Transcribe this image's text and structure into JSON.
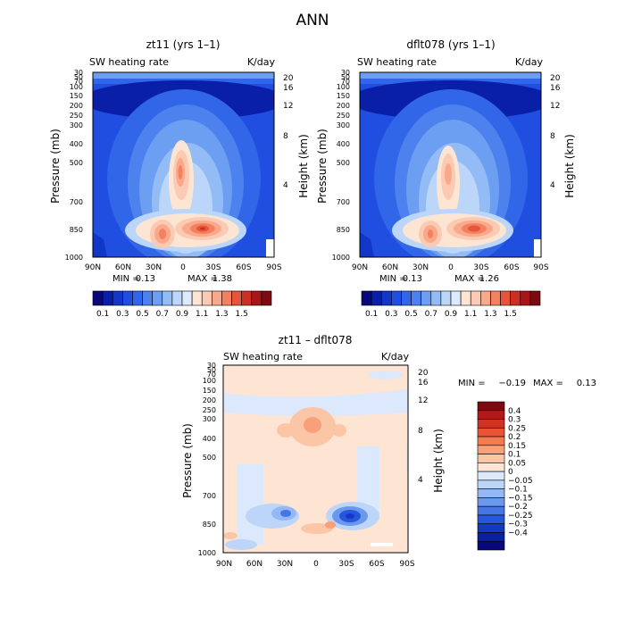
{
  "page_title": "ANN",
  "chart_data": [
    {
      "type": "contour",
      "title": "zt11 (yrs 1–1)",
      "subtitle_left": "SW heating rate",
      "subtitle_right": "K/day",
      "ylabel": "Pressure (mb)",
      "ylabel_right": "Height (km)",
      "x_ticks": [
        "90N",
        "60N",
        "30N",
        "0",
        "30S",
        "60S",
        "90S"
      ],
      "y_ticks": [
        "30",
        "50",
        "70",
        "100",
        "150",
        "200",
        "250",
        "300",
        "400",
        "500",
        "700",
        "850",
        "1000"
      ],
      "y_ticks_right": [
        "20",
        "16",
        "12",
        "8",
        "4"
      ],
      "stats": {
        "min_label": "MIN =",
        "min": "0.13",
        "max_label": "MAX =",
        "max": "1.38"
      },
      "colorbar": {
        "colors": [
          "#08087a",
          "#0a1fa8",
          "#1236c8",
          "#1f4ee0",
          "#3166e8",
          "#4d82ee",
          "#6c9ef2",
          "#93bcf6",
          "#bcd6fa",
          "#dceafd",
          "#fde5d4",
          "#fccab2",
          "#f9a989",
          "#f3805f",
          "#e5553c",
          "#cc2f24",
          "#a8161a",
          "#7d0a10"
        ],
        "labels": [
          "0.1",
          "0.3",
          "0.5",
          "0.7",
          "0.9",
          "1.1",
          "1.3",
          "1.5"
        ]
      }
    },
    {
      "type": "contour",
      "title": "dflt078 (yrs 1–1)",
      "subtitle_left": "SW heating rate",
      "subtitle_right": "K/day",
      "ylabel": "Pressure (mb)",
      "ylabel_right": "Height (km)",
      "x_ticks": [
        "90N",
        "60N",
        "30N",
        "0",
        "30S",
        "60S",
        "90S"
      ],
      "y_ticks": [
        "30",
        "50",
        "70",
        "100",
        "150",
        "200",
        "250",
        "300",
        "400",
        "500",
        "700",
        "850",
        "1000"
      ],
      "y_ticks_right": [
        "20",
        "16",
        "12",
        "8",
        "4"
      ],
      "stats": {
        "min_label": "MIN =",
        "min": "0.13",
        "max_label": "MAX =",
        "max": "1.26"
      },
      "colorbar": {
        "colors": [
          "#08087a",
          "#0a1fa8",
          "#1236c8",
          "#1f4ee0",
          "#3166e8",
          "#4d82ee",
          "#6c9ef2",
          "#93bcf6",
          "#bcd6fa",
          "#dceafd",
          "#fde5d4",
          "#fccab2",
          "#f9a989",
          "#f3805f",
          "#e5553c",
          "#cc2f24",
          "#a8161a",
          "#7d0a10"
        ],
        "labels": [
          "0.1",
          "0.3",
          "0.5",
          "0.7",
          "0.9",
          "1.1",
          "1.3",
          "1.5"
        ]
      }
    },
    {
      "type": "contour",
      "title": "zt11 – dflt078",
      "subtitle_left": "SW heating rate",
      "subtitle_right": "K/day",
      "ylabel": "Pressure (mb)",
      "ylabel_right": "Height (km)",
      "x_ticks": [
        "90N",
        "60N",
        "30N",
        "0",
        "30S",
        "60S",
        "90S"
      ],
      "y_ticks": [
        "30",
        "50",
        "70",
        "100",
        "150",
        "200",
        "250",
        "300",
        "400",
        "500",
        "700",
        "850",
        "1000"
      ],
      "y_ticks_right": [
        "20",
        "16",
        "12",
        "8",
        "4"
      ],
      "stats": {
        "min_label": "MIN =",
        "min": "−0.19",
        "max_label": "MAX =",
        "max": "0.13"
      },
      "colorbar": {
        "colors": [
          "#7d0a10",
          "#b01a18",
          "#d2321f",
          "#ea5333",
          "#f47a50",
          "#f8a07a",
          "#fbc6a6",
          "#fde4d3",
          "#dce9fc",
          "#bdd5f8",
          "#93b8f3",
          "#6a98ee",
          "#4676e6",
          "#2656dc",
          "#1338c4",
          "#0a20a0",
          "#08087a"
        ],
        "labels": [
          "0.4",
          "0.3",
          "0.25",
          "0.2",
          "0.15",
          "0.1",
          "0.05",
          "0",
          "−0.05",
          "−0.1",
          "−0.15",
          "−0.2",
          "−0.25",
          "−0.3",
          "−0.4"
        ]
      }
    }
  ]
}
